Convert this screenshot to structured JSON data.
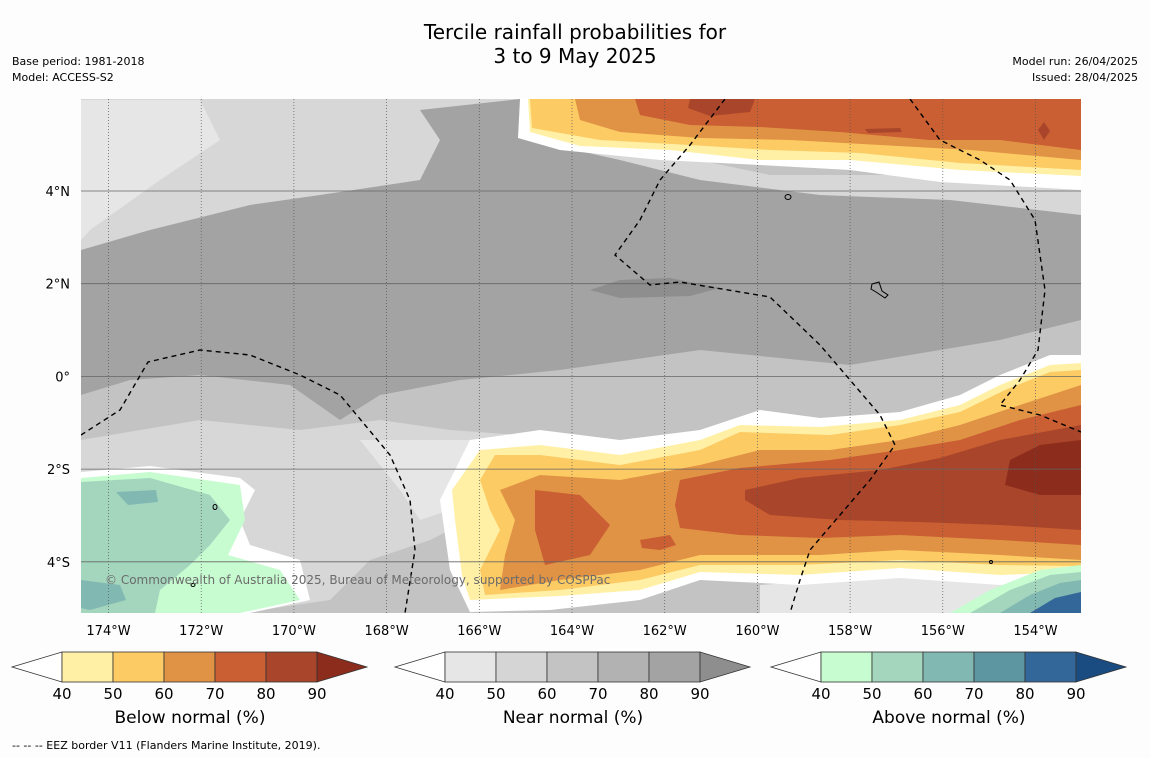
{
  "title": {
    "line1": "Tercile rainfall probabilities for",
    "line2": "3 to 9 May 2025"
  },
  "meta_left": {
    "base_period": "Base period: 1981-2018",
    "model": "Model: ACCESS-S2"
  },
  "meta_right": {
    "model_run": "Model run: 26/04/2025",
    "issued": "Issued: 28/04/2025"
  },
  "map": {
    "copyright": "© Commonwealth of Australia 2025, Bureau of Meteorology, supported by COSPPac",
    "lon_labels": [
      "174°W",
      "172°W",
      "170°W",
      "168°W",
      "166°W",
      "164°W",
      "162°W",
      "160°W",
      "158°W",
      "156°W",
      "154°W"
    ],
    "lat_labels": [
      "4°N",
      "2°N",
      "0°",
      "2°S",
      "4°S"
    ]
  },
  "colorbars": [
    {
      "title": "Below normal (%)",
      "ticks": [
        "40",
        "50",
        "60",
        "70",
        "80",
        "90"
      ],
      "colors": [
        "#fff0a6",
        "#fdcb64",
        "#e09345",
        "#c95f32",
        "#a9452a",
        "#8c2c1c"
      ]
    },
    {
      "title": "Near normal (%)",
      "ticks": [
        "40",
        "50",
        "60",
        "70",
        "80",
        "90"
      ],
      "colors": [
        "#e6e6e6",
        "#d5d5d5",
        "#c3c3c3",
        "#b2b2b2",
        "#a3a3a3",
        "#8e8e8e"
      ]
    },
    {
      "title": "Above normal (%)",
      "ticks": [
        "40",
        "50",
        "60",
        "70",
        "80",
        "90"
      ],
      "colors": [
        "#c7fcd0",
        "#a4d6be",
        "#82b8b2",
        "#5d96a1",
        "#33679a",
        "#1a4c82"
      ]
    }
  ],
  "footer": "--  --  -- EEZ border V11 (Flanders Marine Institute, 2019)."
}
